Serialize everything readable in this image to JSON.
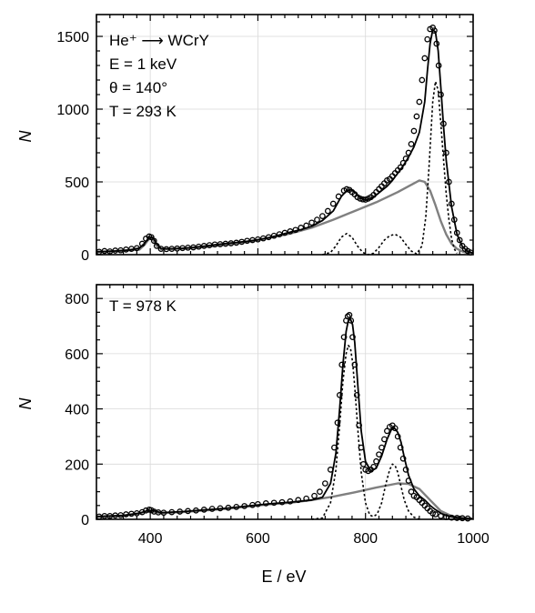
{
  "chart_data": [
    {
      "type": "scatter",
      "panel": "top",
      "xlim": [
        300,
        1000
      ],
      "ylim": [
        0,
        1650
      ],
      "yticks": [
        0,
        500,
        1000,
        1500
      ],
      "xticks": [
        400,
        600,
        800,
        1000
      ],
      "ylabel": "N",
      "grid": true,
      "annotations": [
        "He⁺ ⟶ WCrY",
        "E = 1 keV",
        "θ = 140°",
        "T = 293 K"
      ],
      "series": [
        {
          "role": "measured",
          "style": "open-circle",
          "color": "#000000",
          "x": [
            305,
            315,
            325,
            335,
            345,
            355,
            365,
            375,
            385,
            392,
            398,
            402,
            407,
            412,
            420,
            430,
            440,
            450,
            460,
            470,
            480,
            490,
            500,
            510,
            520,
            530,
            540,
            550,
            560,
            570,
            580,
            590,
            600,
            610,
            620,
            630,
            640,
            650,
            660,
            670,
            680,
            690,
            700,
            710,
            720,
            730,
            740,
            750,
            760,
            765,
            770,
            775,
            780,
            785,
            790,
            795,
            800,
            805,
            810,
            815,
            820,
            825,
            830,
            835,
            840,
            845,
            850,
            855,
            860,
            865,
            870,
            875,
            880,
            885,
            890,
            895,
            900,
            905,
            910,
            915,
            920,
            925,
            928,
            932,
            936,
            940,
            945,
            950,
            955,
            960,
            965,
            970,
            975,
            980,
            985,
            990,
            995
          ],
          "y": [
            20,
            25,
            22,
            28,
            30,
            35,
            40,
            45,
            75,
            110,
            125,
            120,
            95,
            60,
            40,
            38,
            40,
            42,
            45,
            48,
            50,
            55,
            60,
            65,
            70,
            72,
            75,
            78,
            82,
            88,
            95,
            100,
            105,
            112,
            120,
            130,
            140,
            150,
            160,
            170,
            185,
            200,
            220,
            240,
            265,
            300,
            350,
            400,
            440,
            450,
            445,
            430,
            415,
            395,
            385,
            380,
            378,
            385,
            395,
            410,
            430,
            450,
            470,
            490,
            510,
            520,
            540,
            560,
            580,
            600,
            630,
            660,
            700,
            760,
            850,
            950,
            1050,
            1200,
            1350,
            1480,
            1550,
            1560,
            1540,
            1450,
            1300,
            1100,
            900,
            700,
            500,
            350,
            240,
            150,
            100,
            60,
            40,
            25,
            15
          ]
        },
        {
          "role": "fit-total",
          "style": "solid",
          "color": "#000000",
          "x": [
            300,
            320,
            340,
            360,
            380,
            390,
            398,
            405,
            412,
            420,
            440,
            460,
            480,
            500,
            520,
            540,
            560,
            580,
            600,
            620,
            640,
            660,
            680,
            700,
            720,
            740,
            755,
            765,
            772,
            780,
            790,
            800,
            810,
            820,
            830,
            840,
            850,
            860,
            870,
            880,
            890,
            900,
            910,
            915,
            920,
            925,
            930,
            935,
            940,
            945,
            950,
            960,
            970,
            980,
            990,
            1000
          ],
          "y": [
            20,
            22,
            26,
            32,
            45,
            80,
            122,
            118,
            75,
            42,
            40,
            44,
            50,
            58,
            68,
            76,
            84,
            92,
            102,
            116,
            135,
            155,
            172,
            195,
            235,
            300,
            400,
            440,
            448,
            430,
            390,
            375,
            385,
            410,
            440,
            470,
            510,
            560,
            610,
            670,
            740,
            840,
            1050,
            1260,
            1450,
            1545,
            1530,
            1400,
            1150,
            880,
            650,
            330,
            140,
            55,
            22,
            10
          ]
        },
        {
          "role": "fit-background",
          "style": "solid",
          "color": "#808080",
          "x": [
            300,
            340,
            380,
            390,
            398,
            405,
            412,
            420,
            460,
            500,
            540,
            580,
            620,
            660,
            700,
            740,
            780,
            820,
            860,
            880,
            900,
            910,
            920,
            930,
            940,
            950,
            960,
            970,
            980,
            990,
            1000
          ],
          "y": [
            20,
            25,
            35,
            70,
            110,
            105,
            60,
            38,
            42,
            52,
            68,
            88,
            115,
            145,
            185,
            240,
            300,
            360,
            430,
            470,
            510,
            500,
            440,
            340,
            230,
            140,
            75,
            40,
            22,
            12,
            6
          ]
        },
        {
          "role": "fit-peak",
          "style": "dotted",
          "color": "#000000",
          "x": [
            720,
            735,
            745,
            755,
            765,
            775,
            785,
            795,
            805,
            815,
            825,
            835,
            845,
            855,
            865,
            875,
            885,
            895,
            905,
            912,
            918,
            925,
            930,
            935,
            940,
            945,
            950,
            955,
            960,
            965,
            970
          ],
          "y": [
            0,
            15,
            60,
            120,
            145,
            120,
            60,
            15,
            0,
            10,
            50,
            100,
            130,
            140,
            120,
            70,
            25,
            5,
            60,
            260,
            600,
            1050,
            1190,
            1130,
            900,
            650,
            420,
            240,
            110,
            40,
            10
          ]
        }
      ]
    },
    {
      "type": "scatter",
      "panel": "bottom",
      "xlim": [
        300,
        1000
      ],
      "ylim": [
        0,
        850
      ],
      "yticks": [
        0,
        200,
        400,
        600,
        800
      ],
      "xticks": [
        400,
        600,
        800,
        1000
      ],
      "xlabel": "E / eV",
      "ylabel": "N",
      "grid": true,
      "annotations": [
        "T = 978 K"
      ],
      "series": [
        {
          "role": "measured",
          "style": "open-circle",
          "color": "#000000",
          "x": [
            305,
            315,
            325,
            335,
            345,
            355,
            365,
            375,
            385,
            392,
            398,
            402,
            407,
            415,
            425,
            440,
            455,
            470,
            485,
            500,
            515,
            530,
            545,
            560,
            575,
            590,
            600,
            615,
            630,
            645,
            660,
            675,
            690,
            705,
            715,
            725,
            735,
            742,
            748,
            752,
            756,
            760,
            764,
            767,
            770,
            773,
            776,
            780,
            784,
            788,
            792,
            796,
            800,
            805,
            810,
            815,
            820,
            825,
            830,
            835,
            840,
            845,
            850,
            855,
            860,
            865,
            870,
            875,
            880,
            885,
            890,
            895,
            900,
            905,
            910,
            915,
            920,
            925,
            930,
            940,
            950,
            960,
            970,
            980,
            990
          ],
          "y": [
            10,
            12,
            12,
            14,
            15,
            18,
            20,
            22,
            26,
            32,
            35,
            33,
            28,
            25,
            24,
            26,
            28,
            30,
            32,
            35,
            38,
            40,
            42,
            45,
            48,
            52,
            55,
            58,
            60,
            62,
            65,
            70,
            75,
            85,
            100,
            130,
            180,
            260,
            350,
            450,
            560,
            660,
            720,
            735,
            740,
            720,
            660,
            560,
            450,
            340,
            260,
            200,
            180,
            175,
            180,
            190,
            210,
            235,
            260,
            290,
            320,
            335,
            340,
            330,
            300,
            260,
            220,
            180,
            140,
            100,
            85,
            80,
            70,
            60,
            50,
            40,
            30,
            22,
            18,
            12,
            8,
            6,
            5,
            4,
            3
          ]
        },
        {
          "role": "fit-total",
          "style": "solid",
          "color": "#000000",
          "x": [
            300,
            350,
            380,
            395,
            405,
            420,
            460,
            500,
            540,
            580,
            620,
            660,
            700,
            720,
            735,
            745,
            752,
            758,
            764,
            768,
            772,
            776,
            780,
            786,
            792,
            800,
            810,
            820,
            830,
            840,
            848,
            854,
            860,
            866,
            872,
            880,
            890,
            900,
            910,
            920,
            930,
            940,
            950,
            960,
            970,
            980,
            990,
            1000
          ],
          "y": [
            10,
            14,
            22,
            32,
            32,
            24,
            28,
            34,
            40,
            48,
            56,
            62,
            70,
            80,
            130,
            240,
            400,
            560,
            680,
            720,
            725,
            705,
            640,
            480,
            320,
            210,
            175,
            185,
            230,
            290,
            325,
            330,
            315,
            280,
            225,
            160,
            110,
            85,
            70,
            50,
            35,
            22,
            14,
            9,
            6,
            4,
            3,
            2
          ]
        },
        {
          "role": "fit-background",
          "style": "solid",
          "color": "#808080",
          "x": [
            300,
            350,
            380,
            395,
            405,
            420,
            460,
            500,
            540,
            580,
            620,
            660,
            700,
            740,
            780,
            820,
            860,
            880,
            900,
            920,
            940,
            960,
            980,
            1000
          ],
          "y": [
            10,
            14,
            22,
            30,
            28,
            22,
            26,
            32,
            38,
            46,
            54,
            60,
            70,
            82,
            98,
            115,
            130,
            128,
            110,
            70,
            30,
            12,
            5,
            2
          ]
        },
        {
          "role": "fit-peak",
          "style": "dotted",
          "color": "#000000",
          "x": [
            700,
            720,
            735,
            745,
            752,
            758,
            764,
            768,
            772,
            776,
            780,
            786,
            792,
            800,
            808,
            815,
            822,
            830,
            838,
            845,
            850,
            855,
            860,
            866,
            872,
            880,
            890,
            900
          ],
          "y": [
            0,
            5,
            60,
            180,
            340,
            500,
            600,
            630,
            620,
            570,
            480,
            320,
            170,
            60,
            15,
            10,
            20,
            60,
            130,
            180,
            200,
            195,
            170,
            120,
            70,
            30,
            8,
            0
          ]
        }
      ]
    }
  ]
}
